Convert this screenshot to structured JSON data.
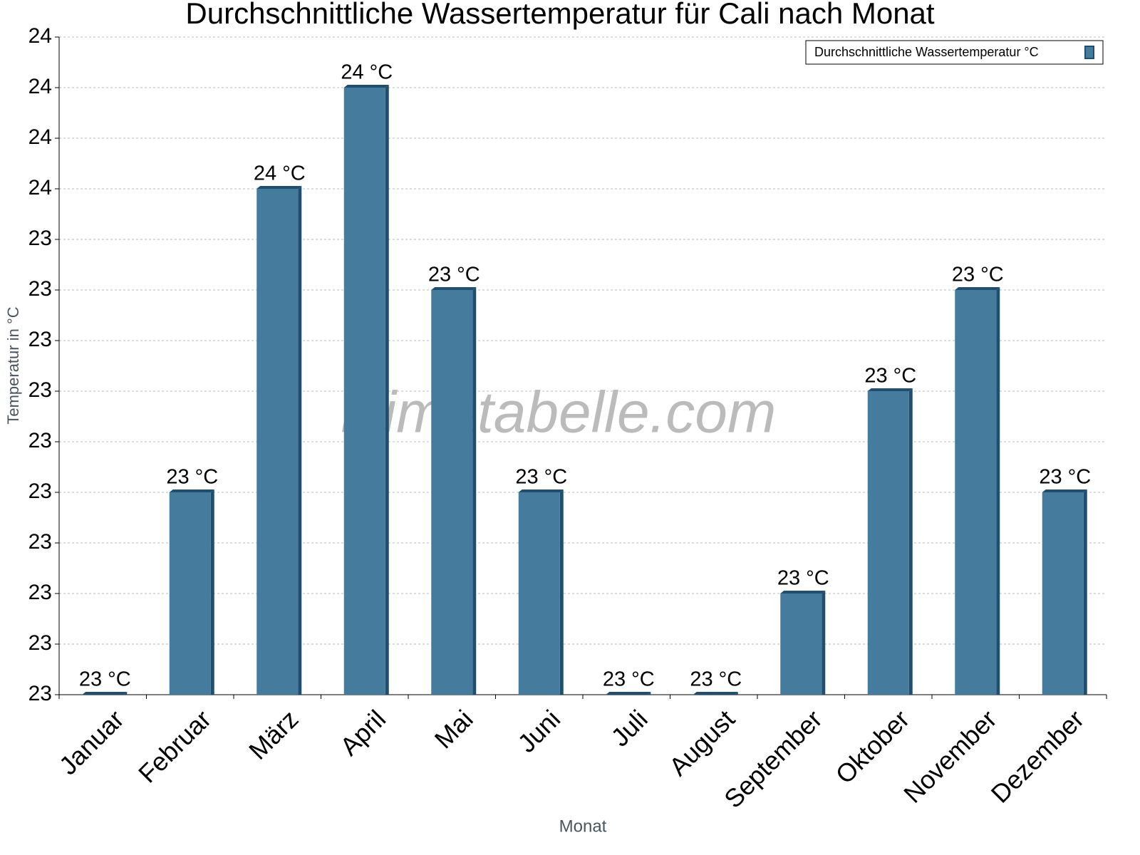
{
  "chart_data": {
    "type": "bar",
    "title": "Durchschnittliche Wassertemperatur für Cali nach Monat",
    "x_label": "Monat",
    "y_label": "Temperatur in °C",
    "watermark": "klimatabelle.com",
    "categories": [
      "Januar",
      "Februar",
      "März",
      "April",
      "Mai",
      "Juni",
      "Juli",
      "August",
      "September",
      "Oktober",
      "November",
      "Dezember"
    ],
    "series": [
      {
        "name": "Durchschnittliche Wassertemperatur °C",
        "color": "#457b9d",
        "values": [
          23.0,
          23.2,
          23.5,
          23.6,
          23.4,
          23.2,
          23.0,
          23.0,
          23.1,
          23.3,
          23.4,
          23.2
        ],
        "value_labels": [
          "23 °C",
          "23 °C",
          "24 °C",
          "24 °C",
          "23 °C",
          "23 °C",
          "23 °C",
          "23 °C",
          "23 °C",
          "23 °C",
          "23 °C",
          "23 °C"
        ]
      }
    ],
    "ylim": [
      23.0,
      23.65
    ],
    "yticks": [
      {
        "value": 23.0,
        "label": "23"
      },
      {
        "value": 23.05,
        "label": "23"
      },
      {
        "value": 23.1,
        "label": "23"
      },
      {
        "value": 23.15,
        "label": "23"
      },
      {
        "value": 23.2,
        "label": "23"
      },
      {
        "value": 23.25,
        "label": "23"
      },
      {
        "value": 23.3,
        "label": "23"
      },
      {
        "value": 23.35,
        "label": "23"
      },
      {
        "value": 23.4,
        "label": "23"
      },
      {
        "value": 23.45,
        "label": "23"
      },
      {
        "value": 23.5,
        "label": "24"
      },
      {
        "value": 23.55,
        "label": "24"
      },
      {
        "value": 23.6,
        "label": "24"
      },
      {
        "value": 23.65,
        "label": "24"
      }
    ],
    "grid": true,
    "legend": "top-right"
  }
}
